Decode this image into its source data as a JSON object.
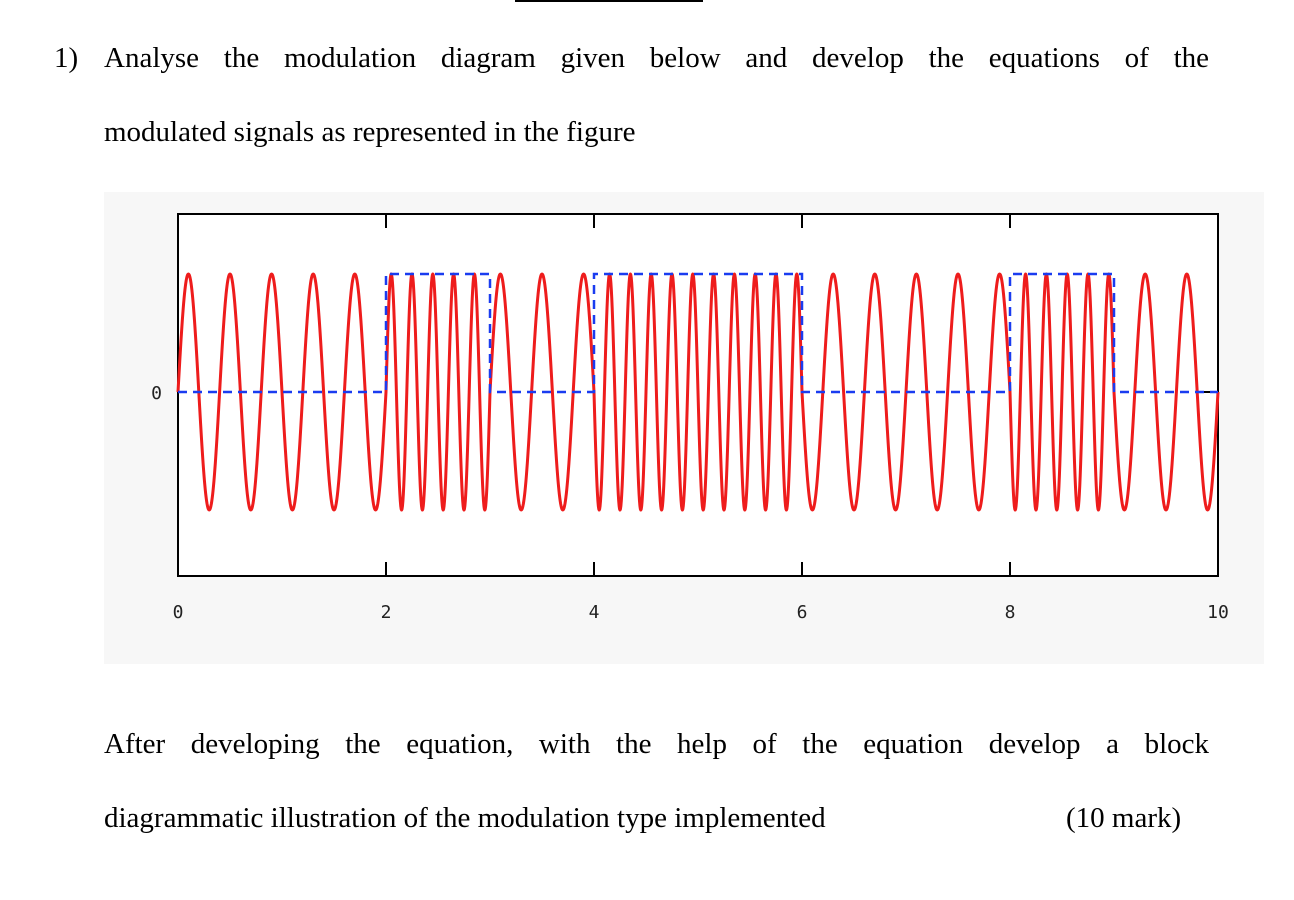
{
  "question": {
    "number": "1)",
    "line1": "Analyse the modulation diagram given below and develop the equations of the",
    "line2": "modulated signals as represented in the figure"
  },
  "instruction": {
    "line1": "After developing the equation, with the help of the equation develop a block",
    "line2": "diagrammatic illustration of the modulation type implemented",
    "marks": "(10 mark)"
  },
  "chart_data": {
    "type": "line",
    "title": "",
    "xlabel": "",
    "ylabel": "",
    "xlim": [
      0,
      10
    ],
    "x_ticks": [
      "0",
      "2",
      "4",
      "6",
      "8",
      "10"
    ],
    "y_ticks": [
      "0"
    ],
    "grid": false,
    "series": [
      {
        "role": "binary-data",
        "style": "dashed",
        "color": "#1a3cf0",
        "levels": [
          {
            "from": 0,
            "to": 2,
            "value": 0
          },
          {
            "from": 2,
            "to": 3,
            "value": 1
          },
          {
            "from": 3,
            "to": 4,
            "value": 0
          },
          {
            "from": 4,
            "to": 6,
            "value": 1
          },
          {
            "from": 6,
            "to": 8,
            "value": 0
          },
          {
            "from": 8,
            "to": 9,
            "value": 1
          },
          {
            "from": 9,
            "to": 10,
            "value": 0
          }
        ]
      },
      {
        "role": "modulated-carrier",
        "style": "solid",
        "color": "#ee1c1c",
        "cycles_per_unit_bit0": 2.5,
        "cycles_per_unit_bit1": 5
      }
    ]
  }
}
